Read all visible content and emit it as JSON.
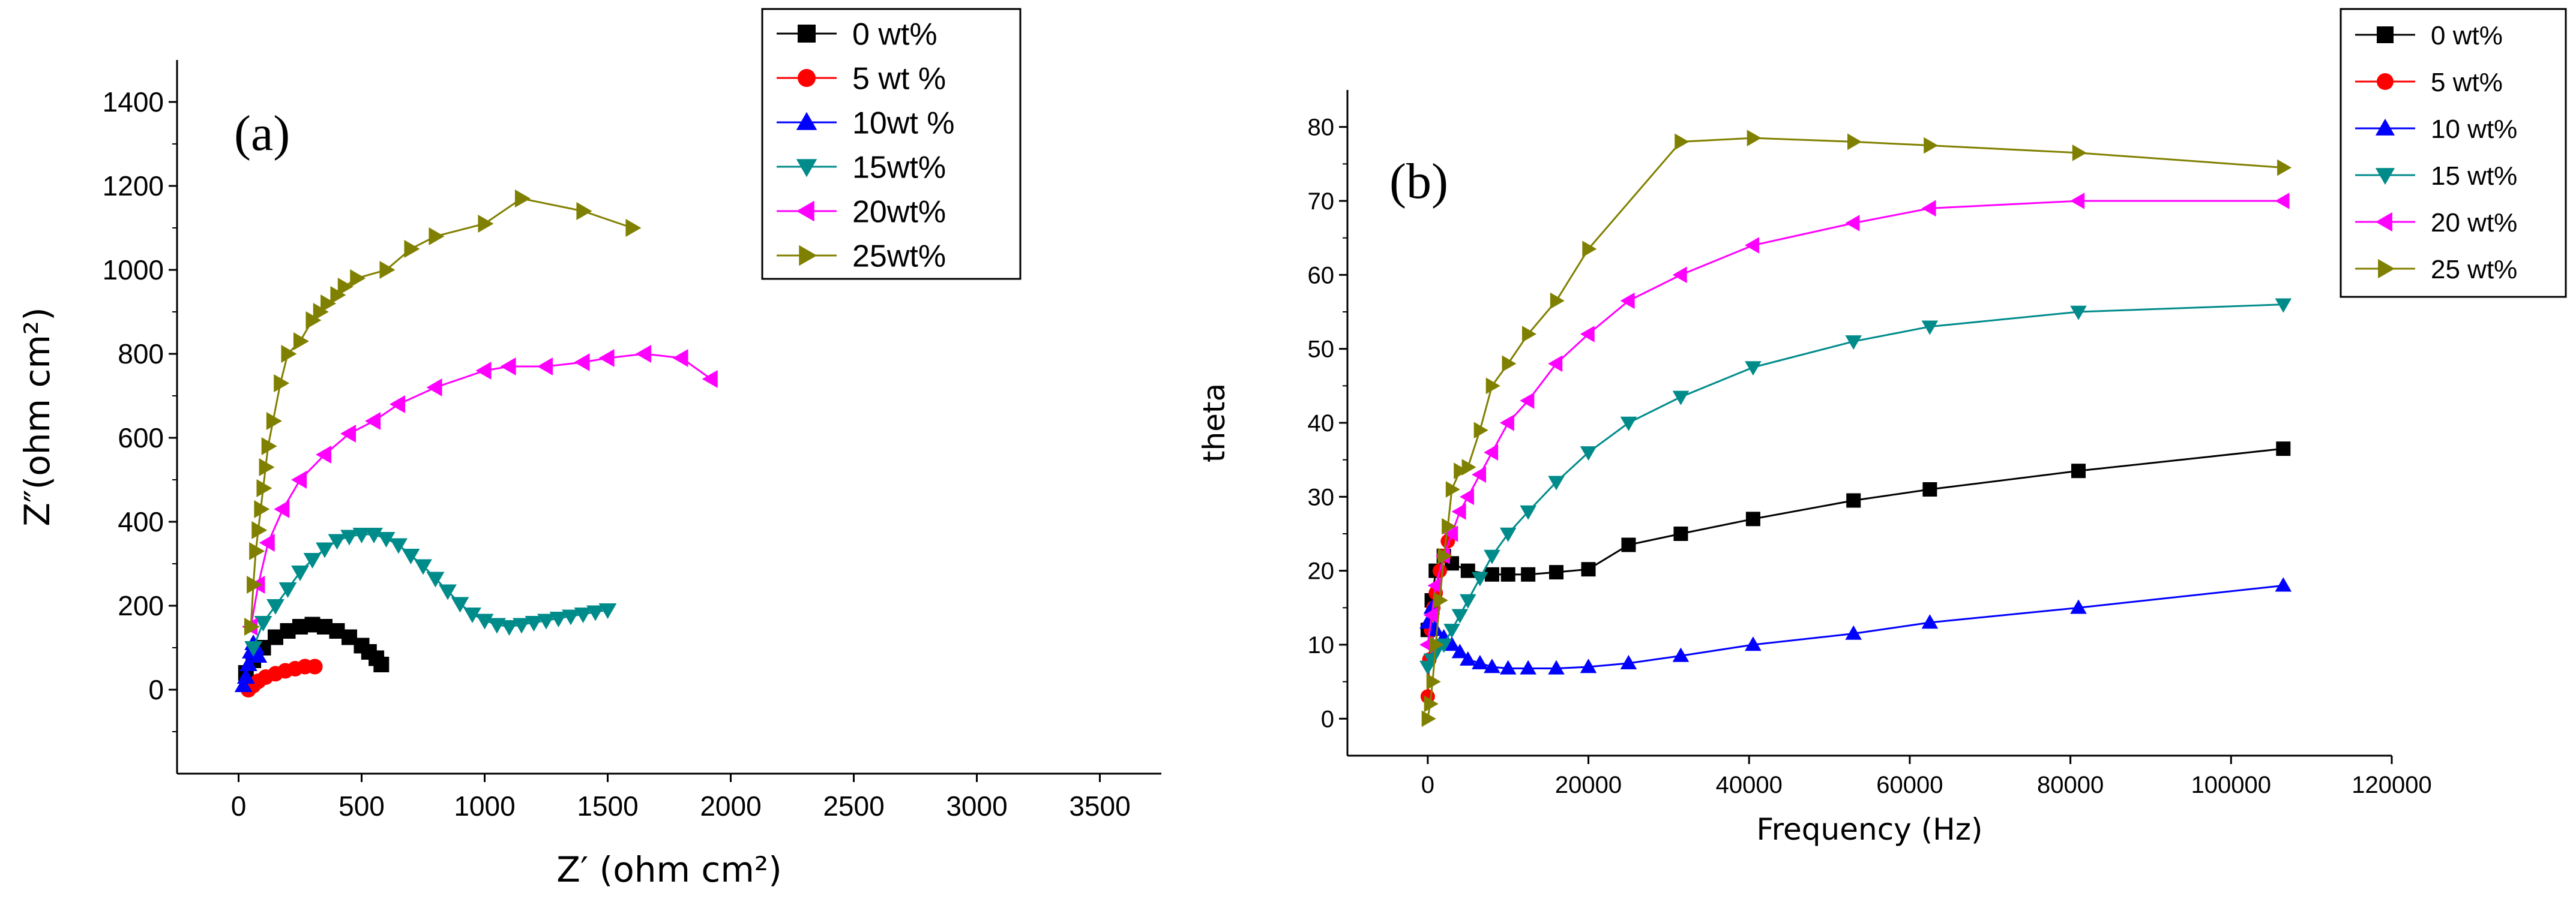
{
  "chart_data": [
    {
      "type": "scatter",
      "panel_label": "(a)",
      "xlabel": "Z′ (ohm cm²)",
      "ylabel": "Z″(ohm cm²)",
      "xlim": [
        -250,
        3750
      ],
      "ylim": [
        -200,
        1500
      ],
      "xticks": [
        0,
        500,
        1000,
        1500,
        2000,
        2500,
        3000,
        3500
      ],
      "yticks": [
        0,
        200,
        400,
        600,
        800,
        1000,
        1200,
        1400
      ],
      "legend_position": "top-right",
      "series": [
        {
          "name": "0 wt%",
          "color": "#000000",
          "marker": "square",
          "x": [
            30,
            60,
            100,
            150,
            200,
            250,
            300,
            350,
            400,
            450,
            500,
            530,
            560,
            580
          ],
          "y": [
            40,
            70,
            100,
            125,
            140,
            150,
            155,
            150,
            140,
            125,
            105,
            90,
            75,
            60
          ]
        },
        {
          "name": "5 wt %",
          "color": "#ff0000",
          "marker": "circle",
          "x": [
            40,
            60,
            80,
            110,
            150,
            190,
            230,
            270,
            310
          ],
          "y": [
            0,
            10,
            20,
            30,
            38,
            45,
            50,
            55,
            55
          ]
        },
        {
          "name": "10wt %",
          "color": "#0000ff",
          "marker": "triangle-up",
          "x": [
            20,
            30,
            40,
            50,
            60,
            70,
            80
          ],
          "y": [
            10,
            30,
            60,
            90,
            110,
            100,
            80
          ]
        },
        {
          "name": "15wt%",
          "color": "#008b8b",
          "marker": "triangle-down",
          "x": [
            60,
            100,
            150,
            200,
            250,
            300,
            350,
            400,
            450,
            500,
            550,
            600,
            650,
            700,
            750,
            800,
            850,
            900,
            950,
            1000,
            1050,
            1100,
            1150,
            1200,
            1250,
            1300,
            1350,
            1400,
            1450,
            1500
          ],
          "y": [
            100,
            160,
            200,
            240,
            280,
            310,
            335,
            355,
            365,
            370,
            370,
            360,
            345,
            320,
            295,
            265,
            235,
            205,
            180,
            165,
            155,
            150,
            155,
            160,
            165,
            170,
            175,
            180,
            185,
            190
          ]
        },
        {
          "name": "20wt%",
          "color": "#ff00ff",
          "marker": "triangle-left",
          "x": [
            50,
            80,
            120,
            180,
            250,
            350,
            450,
            550,
            650,
            800,
            1000,
            1100,
            1250,
            1400,
            1500,
            1650,
            1800,
            1920
          ],
          "y": [
            150,
            250,
            350,
            430,
            500,
            560,
            610,
            640,
            680,
            720,
            760,
            770,
            770,
            780,
            790,
            800,
            790,
            740
          ]
        },
        {
          "name": "25wt%",
          "color": "#808000",
          "marker": "triangle-right",
          "x": [
            50,
            60,
            70,
            80,
            90,
            100,
            110,
            120,
            140,
            170,
            200,
            250,
            300,
            330,
            360,
            400,
            430,
            480,
            600,
            700,
            800,
            1000,
            1150,
            1400,
            1600
          ],
          "y": [
            150,
            250,
            330,
            380,
            430,
            480,
            530,
            580,
            640,
            730,
            800,
            830,
            880,
            900,
            920,
            940,
            960,
            980,
            1000,
            1050,
            1080,
            1110,
            1170,
            1140,
            1100
          ]
        }
      ]
    },
    {
      "type": "line",
      "panel_label": "(b)",
      "xlabel": "Frequency (Hz)",
      "ylabel": "theta",
      "xlim": [
        -10000,
        120000
      ],
      "ylim": [
        -5,
        85
      ],
      "xticks": [
        0,
        20000,
        40000,
        60000,
        80000,
        100000,
        120000
      ],
      "yticks": [
        0,
        10,
        20,
        30,
        40,
        50,
        60,
        70,
        80
      ],
      "legend_position": "top-right",
      "series": [
        {
          "name": "0 wt%",
          "color": "#000000",
          "marker": "square",
          "x": [
            0,
            500,
            1000,
            2000,
            3000,
            5000,
            8000,
            10000,
            12500,
            16000,
            20000,
            25000,
            31500,
            40500,
            53000,
            62500,
            81000,
            106500
          ],
          "y": [
            12,
            16,
            20,
            22,
            21,
            20,
            19.5,
            19.5,
            19.5,
            19.8,
            20.2,
            23.5,
            25,
            27,
            29.5,
            31,
            33.5,
            36.5
          ]
        },
        {
          "name": "5 wt%",
          "color": "#ff0000",
          "marker": "circle",
          "x": [
            0,
            200,
            400,
            700,
            1000,
            1500,
            2000,
            2500
          ],
          "y": [
            3,
            8,
            12,
            15,
            17,
            20,
            22,
            24
          ]
        },
        {
          "name": "10 wt%",
          "color": "#0000ff",
          "marker": "triangle-up",
          "x": [
            0,
            500,
            1000,
            2000,
            3000,
            4000,
            5000,
            6500,
            8000,
            10000,
            12500,
            16000,
            20000,
            25000,
            31500,
            40500,
            53000,
            62500,
            81000,
            106500
          ],
          "y": [
            13,
            15,
            12,
            11,
            10,
            9,
            8,
            7.5,
            7,
            6.8,
            6.8,
            6.8,
            7,
            7.5,
            8.5,
            10,
            11.5,
            13,
            15,
            18
          ]
        },
        {
          "name": "15 wt%",
          "color": "#008b8b",
          "marker": "triangle-down",
          "x": [
            0,
            500,
            1000,
            2000,
            3000,
            4000,
            5000,
            6500,
            8000,
            10000,
            12500,
            16000,
            20000,
            25000,
            31500,
            40500,
            53000,
            62500,
            81000,
            106500
          ],
          "y": [
            7,
            8,
            9,
            10,
            12,
            14,
            16,
            19,
            22,
            25,
            28,
            32,
            36,
            40,
            43.5,
            47.5,
            51,
            53,
            55,
            56
          ]
        },
        {
          "name": "20 wt%",
          "color": "#ff00ff",
          "marker": "triangle-left",
          "x": [
            0,
            500,
            1000,
            2000,
            3000,
            4000,
            5000,
            6500,
            8000,
            10000,
            12500,
            16000,
            20000,
            25000,
            31500,
            40500,
            53000,
            62500,
            81000,
            106500
          ],
          "y": [
            10,
            14,
            18,
            22,
            25,
            28,
            30,
            33,
            36,
            40,
            43,
            48,
            52,
            56.5,
            60,
            64,
            67,
            69,
            70,
            70
          ]
        },
        {
          "name": "25 wt%",
          "color": "#808000",
          "marker": "triangle-right",
          "x": [
            0,
            300,
            600,
            1000,
            1500,
            2000,
            2500,
            3000,
            4000,
            5000,
            6500,
            8000,
            10000,
            12500,
            16000,
            20000,
            31500,
            40500,
            53000,
            62500,
            81000,
            106500
          ],
          "y": [
            0,
            2,
            5,
            10,
            16,
            22,
            26,
            31,
            33.5,
            34,
            39,
            45,
            48,
            52,
            56.5,
            63.5,
            78,
            78.5,
            78,
            77.5,
            76.5,
            74.5
          ]
        }
      ]
    }
  ]
}
